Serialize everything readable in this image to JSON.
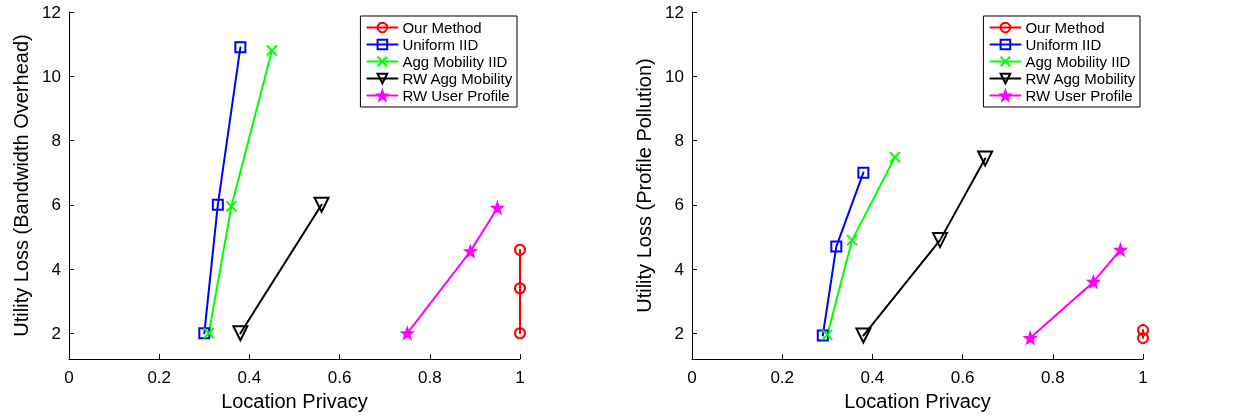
{
  "chart_data": [
    {
      "type": "line",
      "xlabel": "Location Privacy",
      "ylabel": "Utility Loss (Bandwidth Overhead)",
      "xlim": [
        0,
        1
      ],
      "xticks": [
        0,
        0.2,
        0.4,
        0.6,
        0.8,
        1
      ],
      "ylim": [
        1.2,
        12
      ],
      "yticks": [
        2,
        4,
        6,
        8,
        10,
        12
      ],
      "grid": false,
      "legend": "top right",
      "line_style": "solid",
      "series": [
        {
          "name": "Our Method",
          "color": "#ff0000",
          "marker": "circle",
          "x": [
            1,
            1,
            1
          ],
          "values": [
            2,
            3.4,
            4.6
          ]
        },
        {
          "name": "Uniform IID",
          "color": "#0000ff",
          "marker": "square",
          "x": [
            0.3,
            0.33,
            0.38
          ],
          "values": [
            2,
            6,
            10.9
          ]
        },
        {
          "name": "Agg Mobility IID",
          "color": "#00ff00",
          "marker": "cross",
          "x": [
            0.31,
            0.36,
            0.45
          ],
          "values": [
            2,
            5.95,
            10.8
          ]
        },
        {
          "name": "RW Agg Mobility",
          "color": "#000000",
          "marker": "triangle",
          "x": [
            0.38,
            0.56
          ],
          "values": [
            2,
            6
          ]
        },
        {
          "name": "RW User Profile",
          "color": "#ff00ff",
          "marker": "star",
          "x": [
            0.75,
            0.89,
            0.95
          ],
          "values": [
            2,
            4.55,
            5.9
          ]
        }
      ]
    },
    {
      "type": "line",
      "xlabel": "Location Privacy",
      "ylabel": "Utility Loss (Profile Pollution)",
      "xlim": [
        0,
        1
      ],
      "xticks": [
        0,
        0.2,
        0.4,
        0.6,
        0.8,
        1
      ],
      "ylim": [
        1.2,
        12
      ],
      "yticks": [
        2,
        4,
        6,
        8,
        10,
        12
      ],
      "grid": false,
      "legend": "top right",
      "line_style": "solid",
      "series": [
        {
          "name": "Our Method",
          "color": "#ff0000",
          "marker": "circle",
          "x": [
            1,
            1
          ],
          "values": [
            1.85,
            2.1
          ]
        },
        {
          "name": "Uniform IID",
          "color": "#0000ff",
          "marker": "square",
          "x": [
            0.29,
            0.32,
            0.38
          ],
          "values": [
            1.93,
            4.7,
            7
          ]
        },
        {
          "name": "Agg Mobility IID",
          "color": "#00ff00",
          "marker": "cross",
          "x": [
            0.3,
            0.355,
            0.45
          ],
          "values": [
            1.95,
            4.9,
            7.48
          ]
        },
        {
          "name": "RW Agg Mobility",
          "color": "#000000",
          "marker": "triangle",
          "x": [
            0.38,
            0.55,
            0.65
          ],
          "values": [
            1.93,
            4.9,
            7.44
          ]
        },
        {
          "name": "RW User Profile",
          "color": "#ff00ff",
          "marker": "star",
          "x": [
            0.75,
            0.89,
            0.95
          ],
          "values": [
            1.85,
            3.6,
            4.6
          ]
        }
      ]
    }
  ]
}
